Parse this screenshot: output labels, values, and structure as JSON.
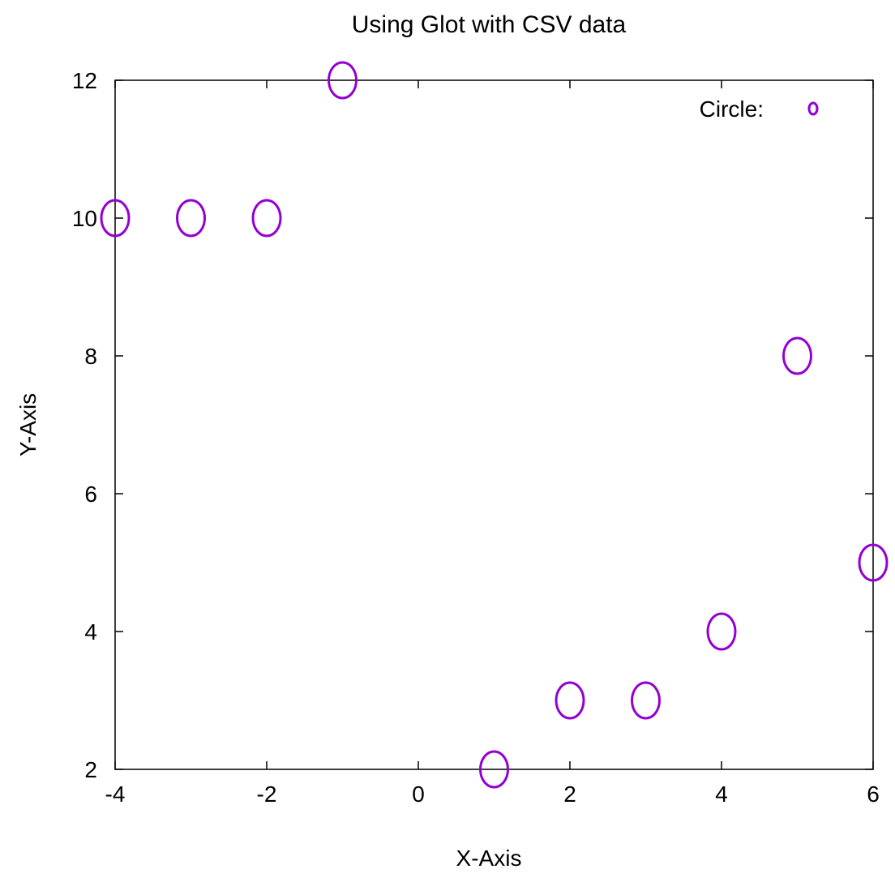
{
  "chart_data": {
    "type": "scatter",
    "title": "Using Glot with CSV data",
    "xlabel": "X-Axis",
    "ylabel": "Y-Axis",
    "xlim": [
      -4,
      6
    ],
    "ylim": [
      2,
      12
    ],
    "x_ticks": [
      "-4",
      "-2",
      "0",
      "2",
      "4",
      "6"
    ],
    "y_ticks": [
      "2",
      "4",
      "6",
      "8",
      "10",
      "12"
    ],
    "x_tick_values": [
      -4,
      -2,
      0,
      2,
      4,
      6
    ],
    "y_tick_values": [
      2,
      4,
      6,
      8,
      10,
      12
    ],
    "grid": false,
    "legend_position": "top-right",
    "series": [
      {
        "name": "Circle:",
        "color": "#9400D3",
        "marker": "circle",
        "x": [
          -4,
          -3,
          -2,
          -1,
          1,
          2,
          3,
          4,
          5,
          6
        ],
        "y": [
          10,
          10,
          10,
          12,
          2,
          3,
          3,
          4,
          8,
          5
        ]
      }
    ]
  }
}
